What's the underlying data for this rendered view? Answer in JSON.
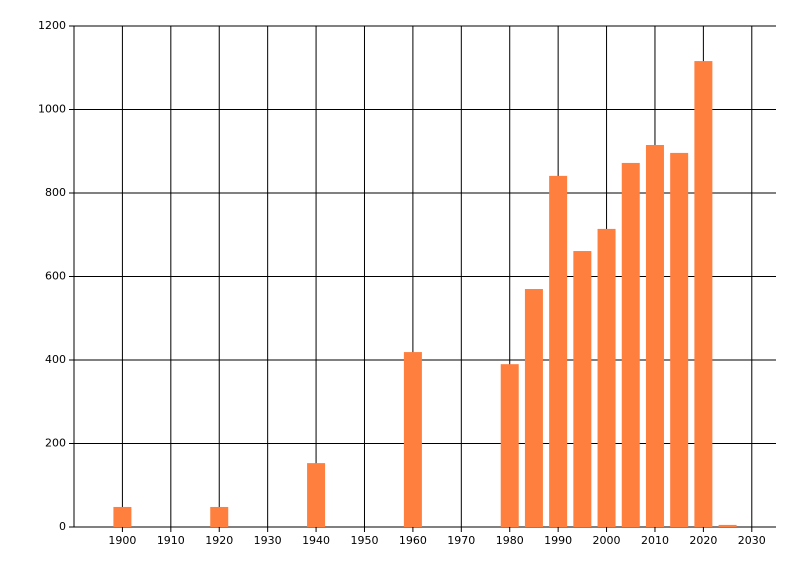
{
  "chart_data": {
    "type": "bar",
    "x": [
      1900,
      1920,
      1940,
      1960,
      1980,
      1985,
      1990,
      1995,
      2000,
      2005,
      2010,
      2015,
      2020,
      2025
    ],
    "values": [
      48,
      48,
      153,
      419,
      390,
      570,
      841,
      661,
      714,
      872,
      915,
      896,
      1116,
      5
    ],
    "color": "#ff7f3f",
    "xlim": [
      1890,
      2035
    ],
    "xticks": [
      1900,
      1910,
      1920,
      1930,
      1940,
      1950,
      1960,
      1970,
      1980,
      1990,
      2000,
      2010,
      2020,
      2030
    ],
    "ylim": [
      0,
      1200
    ],
    "yticks": [
      0,
      200,
      400,
      600,
      800,
      1000,
      1200
    ],
    "grid": true
  }
}
